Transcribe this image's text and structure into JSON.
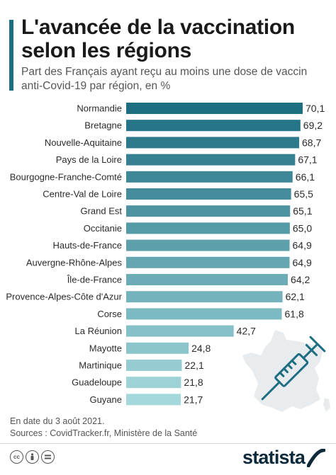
{
  "header": {
    "title": "L'avancée de la vaccination selon les régions",
    "subtitle": "Part des Français ayant reçu au moins une dose de vaccin anti-Covid-19 par région, en %"
  },
  "chart_data": {
    "type": "bar",
    "orientation": "horizontal",
    "title": "L'avancée de la vaccination selon les régions",
    "subtitle": "Part des Français ayant reçu au moins une dose de vaccin anti-Covid-19 par région, en %",
    "categories": [
      "Normandie",
      "Bretagne",
      "Nouvelle-Aquitaine",
      "Pays de la Loire",
      "Bourgogne-Franche-Comté",
      "Centre-Val de Loire",
      "Grand Est",
      "Occitanie",
      "Hauts-de-France",
      "Auvergne-Rhône-Alpes",
      "Île-de-France",
      "Provence-Alpes-Côte d'Azur",
      "Corse",
      "La Réunion",
      "Mayotte",
      "Martinique",
      "Guadeloupe",
      "Guyane"
    ],
    "values": [
      70.1,
      69.2,
      68.7,
      67.1,
      66.1,
      65.5,
      65.1,
      65.0,
      64.9,
      64.9,
      64.2,
      62.1,
      61.8,
      42.7,
      24.8,
      22.1,
      21.8,
      21.7
    ],
    "value_labels": [
      "70,1",
      "69,2",
      "68,7",
      "67,1",
      "66,1",
      "65,5",
      "65,1",
      "65,0",
      "64,9",
      "64,9",
      "64,2",
      "62,1",
      "61,8",
      "42,7",
      "24,8",
      "22,1",
      "21,8",
      "21,7"
    ],
    "xlim": [
      0,
      70.1
    ],
    "grid": false,
    "legend": "none",
    "colors": {
      "darkest": "#1d6e82",
      "lightest": "#a5d8dc"
    }
  },
  "footer": {
    "date_note": "En date du 3 août 2021.",
    "sources": "Sources : CovidTracker.fr, Ministère de la Santé",
    "brand": "statista"
  },
  "icons": [
    "cc-icon",
    "attribution-icon",
    "no-derivatives-icon",
    "france-map-icon",
    "syringe-icon",
    "statista-logo"
  ]
}
